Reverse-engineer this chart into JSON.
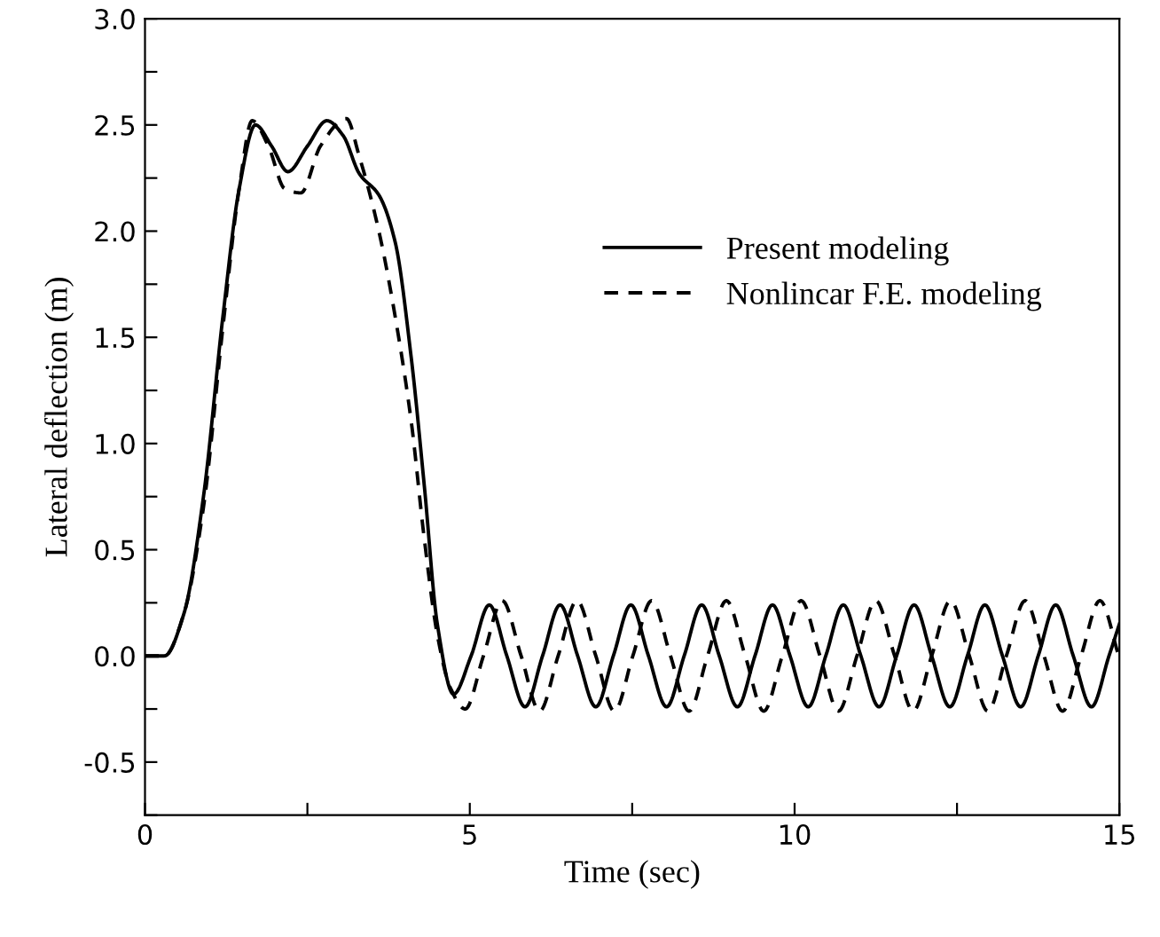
{
  "chart_data": {
    "type": "line",
    "xlabel": "Time (sec)",
    "ylabel": "Lateral deflection (m)",
    "xlim": [
      0,
      15
    ],
    "ylim": [
      -0.75,
      3.0
    ],
    "xticks": [
      0,
      {
        "value": 2.5,
        "label": null
      },
      5,
      {
        "value": 7.5,
        "label": null
      },
      10,
      {
        "value": 12.5,
        "label": null
      },
      15
    ],
    "yticks": [
      {
        "value": -0.75,
        "label": null
      },
      {
        "value": -0.5,
        "label": "-0.5"
      },
      {
        "value": -0.25,
        "label": null
      },
      {
        "value": 0,
        "label": "0.0"
      },
      {
        "value": 0.25,
        "label": null
      },
      {
        "value": 0.5,
        "label": "0.5"
      },
      {
        "value": 0.75,
        "label": null
      },
      {
        "value": 1,
        "label": "1.0"
      },
      {
        "value": 1.25,
        "label": null
      },
      {
        "value": 1.5,
        "label": "1.5"
      },
      {
        "value": 1.75,
        "label": null
      },
      {
        "value": 2,
        "label": "2.0"
      },
      {
        "value": 2.25,
        "label": null
      },
      {
        "value": 2.5,
        "label": "2.5"
      },
      {
        "value": 2.75,
        "label": null
      },
      {
        "value": 3,
        "label": "3.0"
      }
    ],
    "grid": false,
    "legend": "right",
    "marker": "none",
    "series": [
      {
        "name": "Present modeling",
        "color": "#000000",
        "line_style": "solid",
        "x": [
          0,
          0.3,
          0.6,
          0.9,
          1.2,
          1.45,
          1.7,
          1.95,
          2.2,
          2.5,
          2.8,
          3.05,
          3.3,
          3.6,
          3.85,
          4.1,
          4.3,
          4.5,
          4.75,
          5.02,
          5.3,
          5.57,
          5.85,
          6.12,
          6.39,
          6.66,
          6.94,
          7.21,
          7.48,
          7.75,
          8.03,
          8.3,
          8.57,
          8.84,
          9.12,
          9.39,
          9.66,
          9.93,
          10.21,
          10.48,
          10.75,
          11.02,
          11.3,
          11.57,
          11.84,
          12.11,
          12.39,
          12.66,
          12.93,
          13.2,
          13.48,
          13.75,
          14.02,
          14.29,
          14.57,
          14.84,
          15
        ],
        "values": [
          0,
          0,
          0.2,
          0.75,
          1.6,
          2.2,
          2.5,
          2.4,
          2.28,
          2.4,
          2.52,
          2.45,
          2.27,
          2.17,
          1.95,
          1.4,
          0.8,
          0.15,
          -0.18,
          0,
          0.24,
          0,
          -0.24,
          0,
          0.24,
          0,
          -0.24,
          0,
          0.24,
          0,
          -0.24,
          0,
          0.24,
          0,
          -0.24,
          0,
          0.24,
          0,
          -0.24,
          0,
          0.24,
          0,
          -0.24,
          0,
          0.24,
          0,
          -0.24,
          0,
          0.24,
          0,
          -0.24,
          0,
          0.24,
          0,
          -0.24,
          0,
          0.15
        ]
      },
      {
        "name": "Nonlincar F.E. modeling",
        "color": "#000000",
        "line_style": "dashed",
        "x": [
          0,
          0.3,
          0.6,
          0.9,
          1.2,
          1.45,
          1.65,
          1.9,
          2.15,
          2.4,
          2.7,
          3.1,
          3.3,
          3.6,
          3.85,
          4.1,
          4.3,
          4.5,
          4.7,
          4.93,
          5.21,
          5.5,
          5.79,
          6.075,
          6.36,
          6.65,
          6.94,
          7.225,
          7.51,
          7.8,
          8.09,
          8.375,
          8.66,
          8.95,
          9.24,
          9.525,
          9.81,
          10.1,
          10.39,
          10.675,
          10.96,
          11.25,
          11.54,
          11.825,
          12.11,
          12.4,
          12.69,
          12.975,
          13.26,
          13.55,
          13.84,
          14.125,
          14.41,
          14.7,
          15
        ],
        "values": [
          0,
          0,
          0.2,
          0.7,
          1.55,
          2.2,
          2.52,
          2.4,
          2.2,
          2.18,
          2.4,
          2.53,
          2.35,
          2.0,
          1.6,
          1.1,
          0.55,
          0.1,
          -0.15,
          -0.25,
          0,
          0.26,
          0,
          -0.26,
          0,
          0.26,
          0,
          -0.26,
          0,
          0.26,
          0,
          -0.26,
          0,
          0.26,
          0,
          -0.26,
          0,
          0.26,
          0,
          -0.26,
          0,
          0.26,
          0,
          -0.26,
          0,
          0.26,
          0,
          -0.26,
          0,
          0.26,
          0,
          -0.26,
          0,
          0.26,
          -0.01
        ]
      }
    ]
  }
}
